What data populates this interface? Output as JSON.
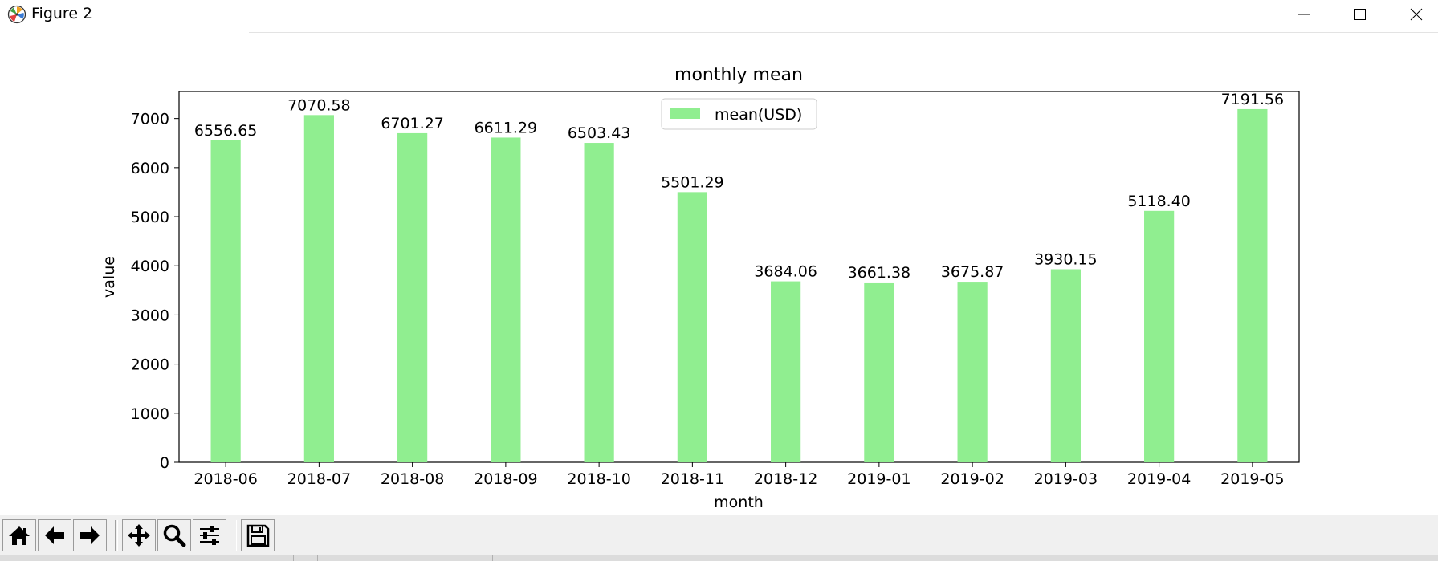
{
  "window": {
    "title": "Figure 2"
  },
  "toolbar": {
    "buttons": [
      {
        "icon": "home-icon"
      },
      {
        "icon": "back-arrow-icon"
      },
      {
        "icon": "forward-arrow-icon"
      },
      {
        "icon": "pan-icon"
      },
      {
        "icon": "zoom-icon"
      },
      {
        "icon": "subplots-config-icon"
      },
      {
        "icon": "save-icon"
      }
    ]
  },
  "colors": {
    "bar": "#90ee90",
    "axis": "#000000",
    "text": "#262626"
  },
  "chart_data": {
    "type": "bar",
    "title": "monthly mean",
    "xlabel": "month",
    "ylabel": "value",
    "ylim": [
      0,
      7550
    ],
    "yticks": [
      0,
      1000,
      2000,
      3000,
      4000,
      5000,
      6000,
      7000
    ],
    "ytick_labels": [
      "0",
      "1000",
      "2000",
      "3000",
      "4000",
      "5000",
      "6000",
      "7000"
    ],
    "categories": [
      "2018-06",
      "2018-07",
      "2018-08",
      "2018-09",
      "2018-10",
      "2018-11",
      "2018-12",
      "2019-01",
      "2019-02",
      "2019-03",
      "2019-04",
      "2019-05"
    ],
    "series": [
      {
        "name": "mean(USD)",
        "values": [
          6556.65,
          7070.58,
          6701.27,
          6611.29,
          6503.43,
          5501.29,
          3684.06,
          3661.38,
          3675.87,
          3930.15,
          5118.4,
          7191.56
        ],
        "labels": [
          "6556.65",
          "7070.58",
          "6701.27",
          "6611.29",
          "6503.43",
          "5501.29",
          "3684.06",
          "3661.38",
          "3675.87",
          "3930.15",
          "5118.40",
          "7191.56"
        ]
      }
    ],
    "legend_position": "top-center",
    "grid": false
  }
}
